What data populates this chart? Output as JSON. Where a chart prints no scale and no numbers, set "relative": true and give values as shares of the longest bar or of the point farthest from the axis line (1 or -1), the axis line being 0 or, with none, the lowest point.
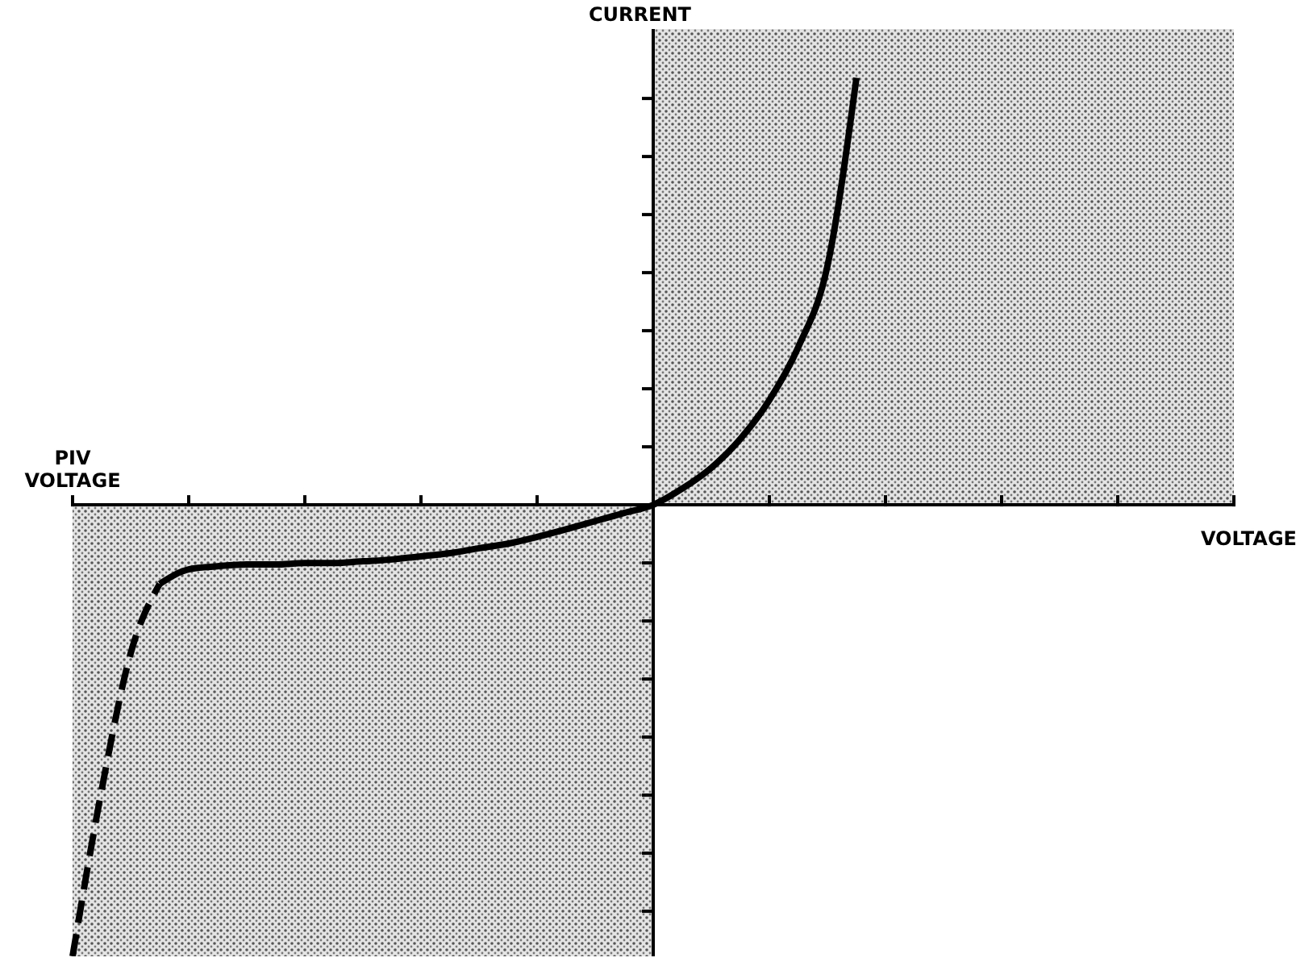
{
  "chart_data": {
    "type": "line",
    "relative": true,
    "xlabel": "VOLTAGE",
    "ylabel": "CURRENT",
    "annotations": [
      "PIV VOLTAGE"
    ],
    "categories": [
      null,
      null,
      null,
      null,
      null,
      null,
      null,
      null,
      null,
      null,
      null,
      null,
      null,
      null,
      null,
      null,
      null,
      null,
      null,
      null,
      null,
      null,
      null,
      null,
      null,
      null,
      null,
      null,
      null,
      null,
      null,
      null,
      null,
      null,
      null,
      null,
      null,
      null,
      null,
      null,
      null
    ],
    "series": [
      {
        "color": "#000000",
        "line_style": "dashed",
        "values": [
          -1,
          -0.632,
          -0.329,
          -0.175,
          null,
          null,
          null,
          null,
          null,
          null,
          null,
          null,
          null,
          null,
          null,
          null,
          null,
          null,
          null,
          null,
          null,
          null,
          null,
          null,
          null,
          null,
          null,
          null,
          null,
          null,
          null,
          null,
          null,
          null,
          null,
          null,
          null,
          null,
          null,
          null,
          null
        ]
      },
      {
        "color": "#000000",
        "line_style": "solid",
        "values": [
          null,
          null,
          null,
          -0.175,
          -0.143,
          -0.136,
          -0.132,
          -0.132,
          -0.129,
          -0.129,
          -0.125,
          -0.121,
          -0.114,
          -0.107,
          -0.096,
          -0.086,
          -0.071,
          -0.054,
          -0.036,
          -0.018,
          0,
          0.036,
          0.082,
          0.146,
          0.232,
          0.35,
          0.529,
          0.946,
          null,
          null,
          null,
          null,
          null,
          null,
          null,
          null,
          null,
          null,
          null,
          null,
          null
        ]
      }
    ]
  }
}
